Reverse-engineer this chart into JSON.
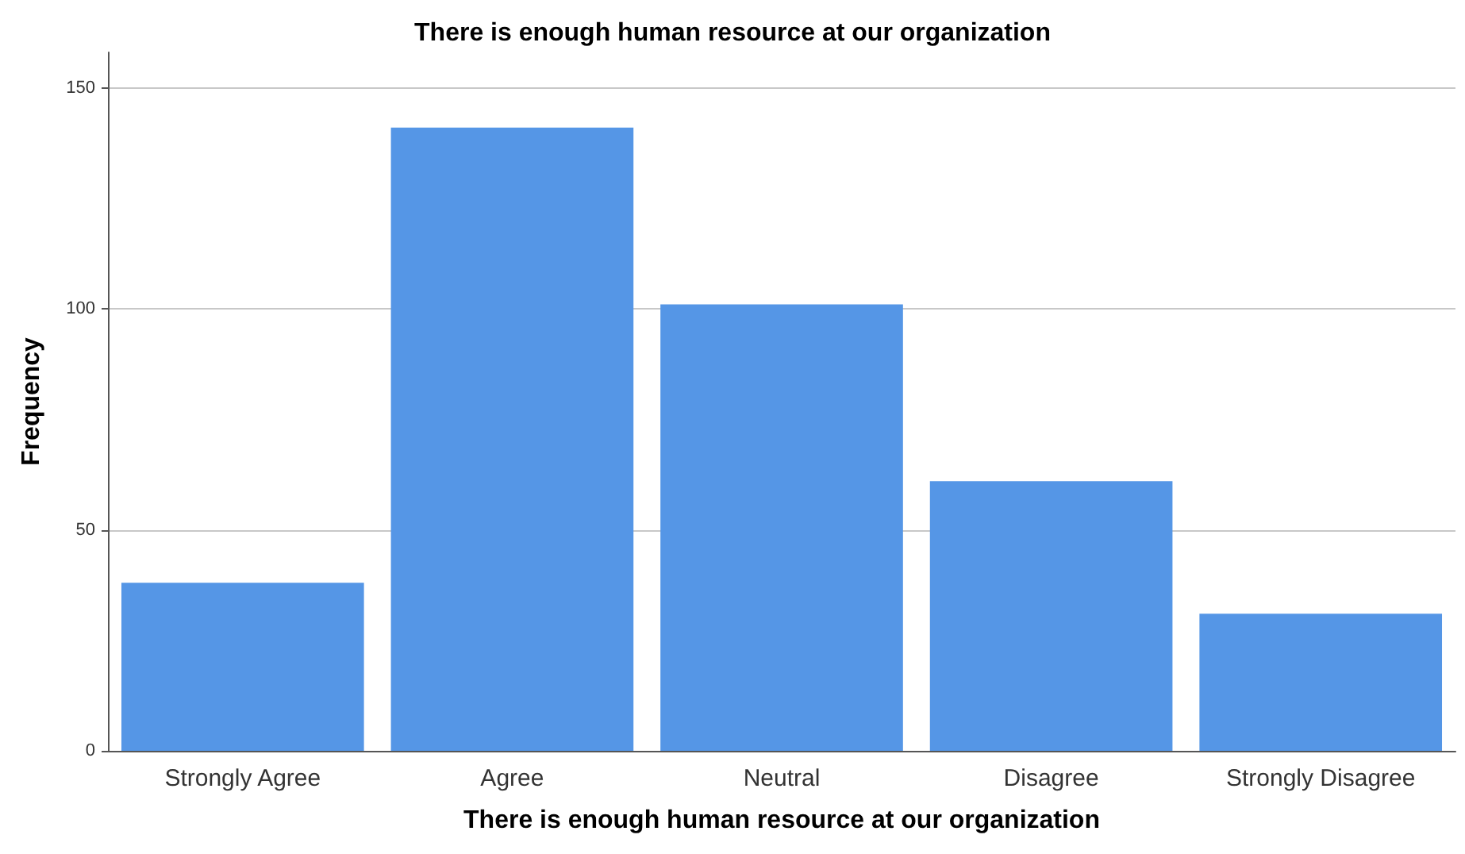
{
  "chart_data": {
    "type": "bar",
    "title": "There is enough human resource at our organization",
    "xlabel": "There is enough human resource at our organization",
    "ylabel": "Frequency",
    "categories": [
      "Strongly Agree",
      "Agree",
      "Neutral",
      "Disagree",
      "Strongly Disagree"
    ],
    "values": [
      38,
      141,
      101,
      61,
      31
    ],
    "color": "#5596e6",
    "ylim": [
      0,
      158
    ],
    "yticks": [
      0,
      50,
      100,
      150
    ],
    "grid": "y"
  }
}
